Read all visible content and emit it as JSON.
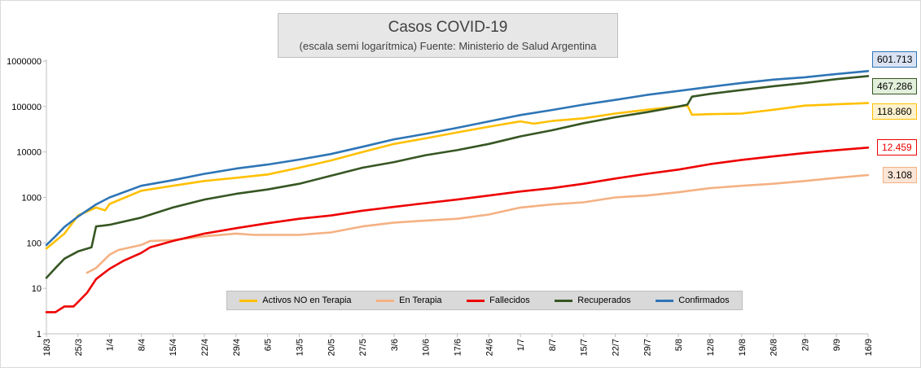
{
  "chart_data": {
    "type": "line",
    "title": "Casos COVID-19",
    "subtitle": "(escala semi logarítmica) Fuente: Ministerio de Salud Argentina",
    "yscale": "log",
    "ylim": [
      1,
      1000000
    ],
    "y_ticks": [
      "1",
      "10",
      "100",
      "1000",
      "10000",
      "100000",
      "1000000"
    ],
    "x_start": "18/3",
    "x_end": "16/9",
    "x_ticks": [
      "18/3",
      "25/3",
      "1/4",
      "8/4",
      "15/4",
      "22/4",
      "29/4",
      "6/5",
      "13/5",
      "20/5",
      "27/5",
      "3/6",
      "10/6",
      "17/6",
      "24/6",
      "1/7",
      "8/7",
      "15/7",
      "22/7",
      "29/7",
      "5/8",
      "12/8",
      "19/8",
      "26/8",
      "2/9",
      "9/9",
      "16/9"
    ],
    "legend_position": "bottom",
    "grid": false,
    "series": [
      {
        "name": "Activos NO en Terapia",
        "color": "#ffc000",
        "end_label": "118.860",
        "label_bg": "#fff2cc",
        "points": [
          [
            "18/3",
            75
          ],
          [
            "22/3",
            160
          ],
          [
            "25/3",
            400
          ],
          [
            "29/3",
            600
          ],
          [
            "31/3",
            520
          ],
          [
            "1/4",
            720
          ],
          [
            "8/4",
            1400
          ],
          [
            "15/4",
            1800
          ],
          [
            "22/4",
            2300
          ],
          [
            "29/4",
            2700
          ],
          [
            "6/5",
            3200
          ],
          [
            "13/5",
            4500
          ],
          [
            "20/5",
            6500
          ],
          [
            "27/5",
            10000
          ],
          [
            "3/6",
            15000
          ],
          [
            "10/6",
            20000
          ],
          [
            "17/6",
            27000
          ],
          [
            "24/6",
            36000
          ],
          [
            "1/7",
            47000
          ],
          [
            "4/7",
            42000
          ],
          [
            "8/7",
            48000
          ],
          [
            "15/7",
            55000
          ],
          [
            "22/7",
            70000
          ],
          [
            "29/7",
            85000
          ],
          [
            "5/8",
            100000
          ],
          [
            "7/8",
            105000
          ],
          [
            "8/8",
            66000
          ],
          [
            "12/8",
            68000
          ],
          [
            "19/8",
            70000
          ],
          [
            "26/8",
            85000
          ],
          [
            "2/9",
            105000
          ],
          [
            "9/9",
            112000
          ],
          [
            "16/9",
            118860
          ]
        ]
      },
      {
        "name": "En Terapia",
        "color": "#f4b183",
        "end_label": "3.108",
        "label_bg": "#fbe5d6",
        "points": [
          [
            "27/3",
            22
          ],
          [
            "29/3",
            28
          ],
          [
            "1/4",
            55
          ],
          [
            "3/4",
            70
          ],
          [
            "8/4",
            90
          ],
          [
            "10/4",
            110
          ],
          [
            "15/4",
            115
          ],
          [
            "22/4",
            140
          ],
          [
            "29/4",
            160
          ],
          [
            "3/5",
            150
          ],
          [
            "6/5",
            150
          ],
          [
            "13/5",
            150
          ],
          [
            "20/5",
            170
          ],
          [
            "27/5",
            230
          ],
          [
            "3/6",
            280
          ],
          [
            "10/6",
            310
          ],
          [
            "17/6",
            340
          ],
          [
            "24/6",
            420
          ],
          [
            "1/7",
            600
          ],
          [
            "8/7",
            700
          ],
          [
            "15/7",
            780
          ],
          [
            "22/7",
            1000
          ],
          [
            "29/7",
            1100
          ],
          [
            "5/8",
            1300
          ],
          [
            "12/8",
            1600
          ],
          [
            "19/8",
            1800
          ],
          [
            "26/8",
            2000
          ],
          [
            "2/9",
            2300
          ],
          [
            "9/9",
            2700
          ],
          [
            "16/9",
            3108
          ]
        ]
      },
      {
        "name": "Fallecidos",
        "color": "#ee0000",
        "end_label": "12.459",
        "label_bg": "#ffffff",
        "points": [
          [
            "18/3",
            3
          ],
          [
            "20/3",
            3
          ],
          [
            "22/3",
            4
          ],
          [
            "24/3",
            4
          ],
          [
            "25/3",
            5
          ],
          [
            "27/3",
            8
          ],
          [
            "29/3",
            16
          ],
          [
            "1/4",
            27
          ],
          [
            "4/4",
            40
          ],
          [
            "8/4",
            60
          ],
          [
            "10/4",
            80
          ],
          [
            "15/4",
            110
          ],
          [
            "22/4",
            160
          ],
          [
            "29/4",
            210
          ],
          [
            "6/5",
            270
          ],
          [
            "13/5",
            340
          ],
          [
            "20/5",
            400
          ],
          [
            "27/5",
            510
          ],
          [
            "3/6",
            620
          ],
          [
            "10/6",
            750
          ],
          [
            "17/6",
            900
          ],
          [
            "24/6",
            1100
          ],
          [
            "1/7",
            1350
          ],
          [
            "8/7",
            1600
          ],
          [
            "15/7",
            2000
          ],
          [
            "22/7",
            2600
          ],
          [
            "29/7",
            3300
          ],
          [
            "5/8",
            4100
          ],
          [
            "12/8",
            5400
          ],
          [
            "19/8",
            6700
          ],
          [
            "26/8",
            8000
          ],
          [
            "2/9",
            9500
          ],
          [
            "9/9",
            11000
          ],
          [
            "16/9",
            12459
          ]
        ]
      },
      {
        "name": "Recuperados",
        "color": "#375623",
        "end_label": "467.286",
        "label_bg": "#e2efda",
        "points": [
          [
            "18/3",
            17
          ],
          [
            "20/3",
            28
          ],
          [
            "22/3",
            45
          ],
          [
            "25/3",
            65
          ],
          [
            "28/3",
            80
          ],
          [
            "29/3",
            230
          ],
          [
            "1/4",
            250
          ],
          [
            "8/4",
            360
          ],
          [
            "15/4",
            600
          ],
          [
            "22/4",
            900
          ],
          [
            "29/4",
            1200
          ],
          [
            "6/5",
            1500
          ],
          [
            "13/5",
            2000
          ],
          [
            "20/5",
            3000
          ],
          [
            "27/5",
            4500
          ],
          [
            "3/6",
            6000
          ],
          [
            "10/6",
            8500
          ],
          [
            "17/6",
            11000
          ],
          [
            "24/6",
            15000
          ],
          [
            "1/7",
            22000
          ],
          [
            "8/7",
            30000
          ],
          [
            "15/7",
            43000
          ],
          [
            "22/7",
            58000
          ],
          [
            "29/7",
            75000
          ],
          [
            "5/8",
            100000
          ],
          [
            "7/8",
            110000
          ],
          [
            "8/8",
            165000
          ],
          [
            "12/8",
            190000
          ],
          [
            "19/8",
            230000
          ],
          [
            "26/8",
            280000
          ],
          [
            "2/9",
            330000
          ],
          [
            "9/9",
            400000
          ],
          [
            "16/9",
            467286
          ]
        ]
      },
      {
        "name": "Confirmados",
        "color": "#2e75b6",
        "end_label": "601.713",
        "label_bg": "#dae3f3",
        "points": [
          [
            "18/3",
            90
          ],
          [
            "20/3",
            140
          ],
          [
            "22/3",
            225
          ],
          [
            "25/3",
            380
          ],
          [
            "29/3",
            700
          ],
          [
            "1/4",
            1000
          ],
          [
            "8/4",
            1800
          ],
          [
            "15/4",
            2400
          ],
          [
            "22/4",
            3300
          ],
          [
            "29/4",
            4300
          ],
          [
            "6/5",
            5300
          ],
          [
            "13/5",
            6800
          ],
          [
            "20/5",
            9000
          ],
          [
            "27/5",
            13000
          ],
          [
            "3/6",
            19000
          ],
          [
            "10/6",
            25000
          ],
          [
            "17/6",
            34000
          ],
          [
            "24/6",
            47000
          ],
          [
            "1/7",
            65000
          ],
          [
            "8/7",
            84000
          ],
          [
            "15/7",
            110000
          ],
          [
            "22/7",
            140000
          ],
          [
            "29/7",
            180000
          ],
          [
            "5/8",
            220000
          ],
          [
            "12/8",
            270000
          ],
          [
            "19/8",
            330000
          ],
          [
            "26/8",
            390000
          ],
          [
            "2/9",
            440000
          ],
          [
            "9/9",
            520000
          ],
          [
            "16/9",
            601713
          ]
        ]
      }
    ]
  }
}
